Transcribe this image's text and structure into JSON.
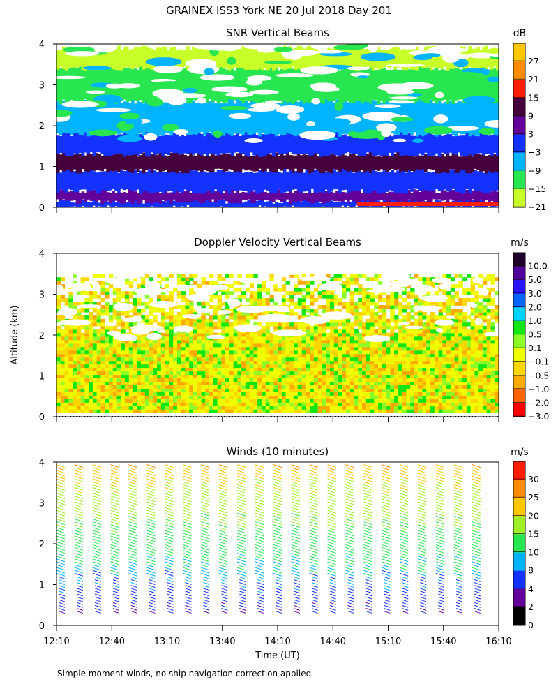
{
  "figure": {
    "title": "GRAINEX ISS3 York NE  20 Jul 2018 Day 201",
    "ylabel": "Altitude (km)",
    "xlabel": "Time (UT)",
    "footnote": "Simple moment winds, no ship navigation correction applied"
  },
  "chart_data": [
    {
      "type": "heatmap",
      "title": "SNR Vertical Beams",
      "unit": "dB",
      "ylim": [
        0,
        4
      ],
      "yticks": [
        "0",
        "1",
        "2",
        "3",
        "4"
      ],
      "colorbar": {
        "labels": [
          "27",
          "21",
          "15",
          "9",
          "3",
          "−3",
          "−9",
          "−15",
          "−21"
        ],
        "colors": [
          "#ffc800",
          "#ff8c00",
          "#ff1e00",
          "#46003c",
          "#64009a",
          "#1432ff",
          "#00b4ff",
          "#28e650",
          "#c8ff28"
        ]
      },
      "layers": [
        {
          "alt": [
            0.0,
            0.15
          ],
          "label": "-3"
        },
        {
          "alt": [
            0.15,
            0.4
          ],
          "label": "3"
        },
        {
          "alt": [
            0.4,
            0.9
          ],
          "label": "-3"
        },
        {
          "alt": [
            0.9,
            1.3
          ],
          "label": "9"
        },
        {
          "alt": [
            1.3,
            1.8
          ],
          "label": "-3"
        },
        {
          "alt": [
            1.8,
            2.6
          ],
          "label": "-9"
        },
        {
          "alt": [
            2.6,
            3.4
          ],
          "label": "-15"
        },
        {
          "alt": [
            3.4,
            3.9
          ],
          "label": "-21"
        }
      ]
    },
    {
      "type": "heatmap",
      "title": "Doppler Velocity Vertical Beams",
      "unit": "m/s",
      "ylim": [
        0,
        4
      ],
      "yticks": [
        "0",
        "1",
        "2",
        "3",
        "4"
      ],
      "colorbar": {
        "labels": [
          "10.0",
          "5.0",
          "3.0",
          "2.0",
          "1.0",
          "0.5",
          "0.1",
          "−0.1",
          "−0.5",
          "−1.0",
          "−2.0",
          "−3.0"
        ],
        "colors": [
          "#1e0028",
          "#50009a",
          "#2814ff",
          "#0064ff",
          "#00d2ff",
          "#14e614",
          "#8cff28",
          "#f0ff00",
          "#ffd700",
          "#ffaa00",
          "#ff6400",
          "#ff0000"
        ]
      },
      "dominant_value_range": [
        -0.5,
        0.1
      ]
    },
    {
      "type": "scatter",
      "title": "Winds (10 minutes)",
      "unit": "m/s",
      "ylim": [
        0,
        4
      ],
      "yticks": [
        "0",
        "1",
        "2",
        "3",
        "4"
      ],
      "xticks": [
        "12:10",
        "12:40",
        "13:10",
        "13:40",
        "14:10",
        "14:40",
        "15:10",
        "15:40",
        "16:10"
      ],
      "colorbar": {
        "labels": [
          "30",
          "25",
          "20",
          "15",
          "10",
          "8",
          "4",
          "2",
          "0"
        ],
        "colors": [
          "#ff1e00",
          "#ff8c00",
          "#ffc800",
          "#a0f028",
          "#28e650",
          "#00b4ff",
          "#1432ff",
          "#64009a",
          "#000000"
        ]
      },
      "wind_speed_profile": [
        {
          "alt": 0.3,
          "speed": 4
        },
        {
          "alt": 1.0,
          "speed": 8
        },
        {
          "alt": 1.5,
          "speed": 10
        },
        {
          "alt": 2.5,
          "speed": 15
        },
        {
          "alt": 3.5,
          "speed": 20
        },
        {
          "alt": 4.0,
          "speed": 27
        }
      ],
      "profile_count": 24
    }
  ]
}
